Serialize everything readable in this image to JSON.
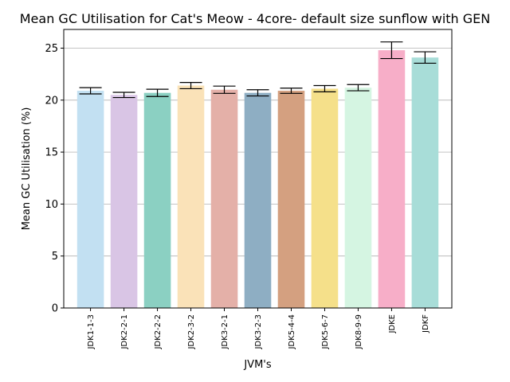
{
  "chart_data": {
    "type": "bar",
    "title": "Mean GC Utilisation for Cat's Meow - 4core- default size sunflow with GEN",
    "xlabel": "JVM's",
    "ylabel": "Mean GC Utilisation (%)",
    "ylim": [
      0,
      26.8
    ],
    "yticks": [
      0,
      5,
      10,
      15,
      20,
      25
    ],
    "grid": "horizontal",
    "categories": [
      "JDK1-1-3",
      "JDK2-2-1",
      "JDK2-2-2",
      "JDK2-3-2",
      "JDK3-2-1",
      "JDK3-2-3",
      "JDK5-4-4",
      "JDK5-6-7",
      "JDK8-9-9",
      "JDKE",
      "JDKF"
    ],
    "values": [
      20.9,
      20.5,
      20.7,
      21.4,
      21.0,
      20.7,
      20.9,
      21.1,
      21.2,
      24.8,
      24.1
    ],
    "errors": [
      0.3,
      0.25,
      0.35,
      0.3,
      0.35,
      0.3,
      0.25,
      0.3,
      0.3,
      0.8,
      0.55
    ],
    "colors": [
      "#c2e0f2",
      "#d9c5e5",
      "#8bd0c2",
      "#fae2b8",
      "#e4b0a8",
      "#8eaec3",
      "#d4a080",
      "#f5e08a",
      "#d5f5e2",
      "#f7aec8",
      "#a8ddd8"
    ]
  }
}
